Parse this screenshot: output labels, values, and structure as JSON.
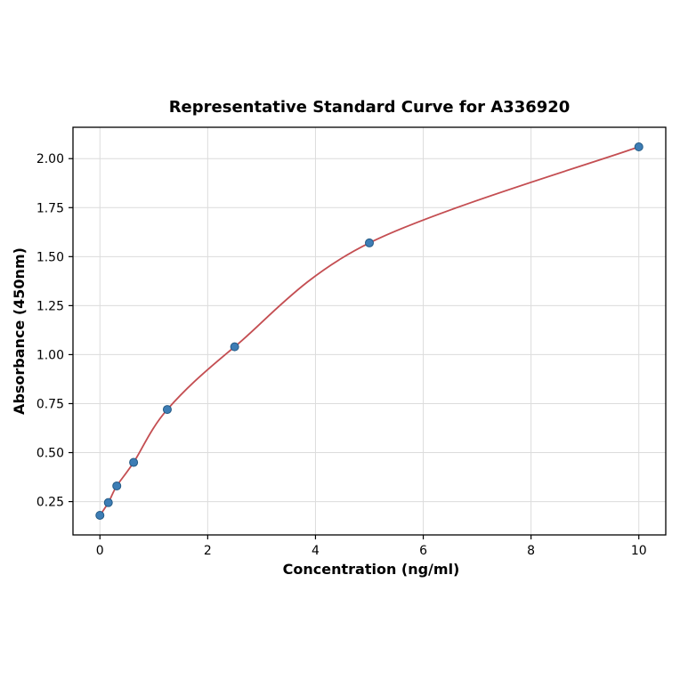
{
  "chart_data": {
    "type": "scatter",
    "title": "Representative Standard Curve for A336920",
    "xlabel": "Concentration (ng/ml)",
    "ylabel": "Absorbance (450nm)",
    "x": [
      0,
      0.156,
      0.313,
      0.625,
      1.25,
      2.5,
      5,
      10
    ],
    "y": [
      0.18,
      0.245,
      0.33,
      0.45,
      0.72,
      1.04,
      1.57,
      2.06
    ],
    "curve": "smooth fit through all points",
    "xlim": [
      -0.5,
      10.5
    ],
    "ylim": [
      0.08,
      2.16
    ],
    "xticks": [
      0,
      2,
      4,
      6,
      8,
      10
    ],
    "yticks": [
      0.25,
      0.5,
      0.75,
      1.0,
      1.25,
      1.5,
      1.75,
      2.0
    ],
    "grid": true,
    "legend": "none",
    "colors": {
      "point_fill": "#3d7db5",
      "point_edge": "#235a85",
      "curve": "#c44e52",
      "grid": "#dcdcdc",
      "frame": "#000000"
    }
  }
}
